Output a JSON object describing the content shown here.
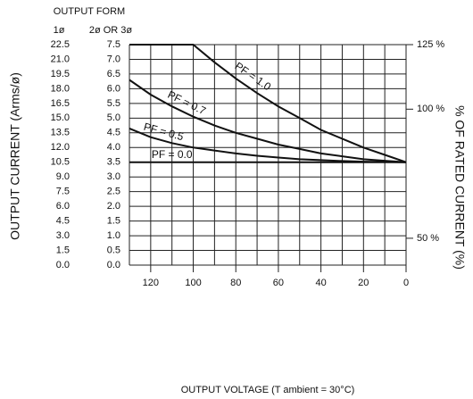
{
  "chart_data": {
    "type": "line",
    "header": "OUTPUT FORM",
    "outer_axis_title": "1ø",
    "inner_axis_title": "2ø OR 3ø",
    "ylabel": "OUTPUT CURRENT (Arms/ø)",
    "y2label": "% OF RATED CURRENT (%)",
    "xlabel": "OUTPUT VOLTAGE (T ambient = 30°C)",
    "x": [
      130,
      120,
      110,
      100,
      90,
      80,
      70,
      60,
      50,
      40,
      30,
      20,
      10,
      0
    ],
    "series": [
      {
        "name": "PF = 1.0",
        "color": "#111111",
        "values": [
          7.5,
          7.5,
          7.5,
          7.5,
          6.9,
          6.35,
          5.85,
          5.4,
          5.0,
          4.6,
          4.3,
          4.0,
          3.75,
          3.5
        ]
      },
      {
        "name": "PF = 0.7",
        "color": "#111111",
        "values": [
          6.3,
          5.8,
          5.4,
          5.05,
          4.75,
          4.5,
          4.3,
          4.1,
          3.95,
          3.8,
          3.7,
          3.6,
          3.55,
          3.5
        ]
      },
      {
        "name": "PF = 0.5",
        "color": "#111111",
        "values": [
          4.65,
          4.35,
          4.15,
          4.0,
          3.9,
          3.8,
          3.72,
          3.66,
          3.6,
          3.57,
          3.54,
          3.52,
          3.51,
          3.5
        ]
      },
      {
        "name": "PF = 0.0",
        "color": "#111111",
        "values": [
          3.5,
          3.5,
          3.5,
          3.5,
          3.5,
          3.5,
          3.5,
          3.5,
          3.5,
          3.5,
          3.5,
          3.5,
          3.5,
          3.5
        ]
      }
    ],
    "xlim": [
      130,
      0
    ],
    "xticks": [
      120,
      100,
      80,
      60,
      40,
      20,
      0
    ],
    "xminorticks": [
      130,
      110,
      90,
      70,
      50,
      30,
      10
    ],
    "ylim": [
      0,
      7.5
    ],
    "yticks": [
      {
        "value": 0,
        "label": "0.0"
      },
      0.5,
      {
        "value": 1,
        "label": "1.0"
      },
      1.5,
      {
        "value": 2,
        "label": "2.0"
      },
      2.5,
      {
        "value": 3,
        "label": "3.0"
      },
      3.5,
      {
        "value": 4,
        "label": "4.0"
      },
      4.5,
      {
        "value": 5,
        "label": "5.0"
      },
      5.5,
      {
        "value": 6,
        "label": "6.0"
      },
      6.5,
      {
        "value": 7,
        "label": "7.0"
      },
      7.5
    ],
    "y3lim": [
      0,
      22.5
    ],
    "y3ticks": [
      {
        "value": 0,
        "label": "0.0"
      },
      1.5,
      {
        "value": 3,
        "label": "3.0"
      },
      4.5,
      {
        "value": 6,
        "label": "6.0"
      },
      7.5,
      {
        "value": 9,
        "label": "9.0"
      },
      10.5,
      {
        "value": 12,
        "label": "12.0"
      },
      13.5,
      {
        "value": 15,
        "label": "15.0"
      },
      16.5,
      {
        "value": 18,
        "label": "18.0"
      },
      19.5,
      {
        "value": 21,
        "label": "21.0"
      },
      22.5
    ],
    "y2lim": [
      39.6,
      125
    ],
    "y2ticks": [
      {
        "value": 125,
        "label": "125 %"
      },
      {
        "value": 100,
        "label": "100 %"
      },
      {
        "value": 50,
        "label": "50 %"
      }
    ],
    "grid": true
  }
}
